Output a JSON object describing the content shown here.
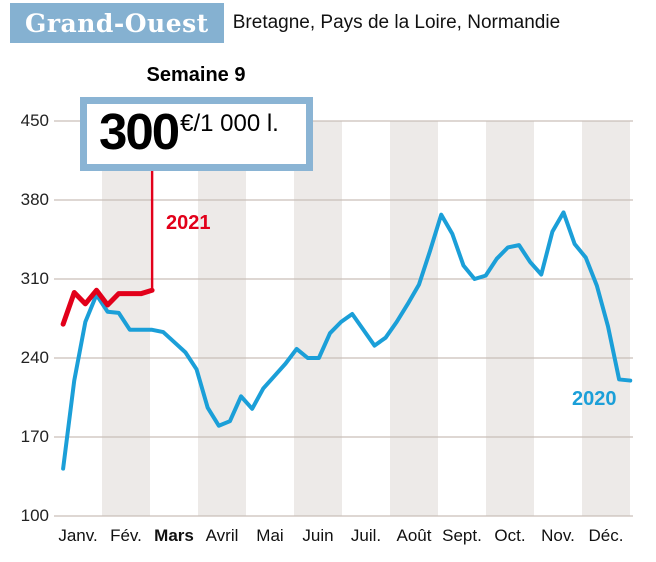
{
  "header": {
    "region": "Grand-Ouest",
    "subtitle": "Bretagne, Pays de la Loire, Normandie"
  },
  "callout": {
    "title": "Semaine 9",
    "value": "300",
    "unit": "€/1 000 l."
  },
  "colors": {
    "red_2021": "#e2001a",
    "blue_2020": "#1b9fd8",
    "header_bg": "#85b1d1",
    "callout_border": "#8ab4d4",
    "month_band": "#edeae8",
    "gridline": "#c9bfb9",
    "text": "#1d1d1b"
  },
  "chart_data": {
    "type": "line",
    "unit": "€/1 000 l.",
    "months": [
      "Janv.",
      "Fév.",
      "Mars",
      "Avril",
      "Mai",
      "Juin",
      "Juil.",
      "Août",
      "Sept.",
      "Oct.",
      "Nov.",
      "Déc."
    ],
    "bold_month": "Mars",
    "y_ticks": [
      450,
      380,
      310,
      240,
      170,
      100
    ],
    "ylim": [
      100,
      460
    ],
    "x_weeks": 52,
    "legend_position": "on-chart",
    "grid": "horizontal",
    "series": [
      {
        "name": "2020",
        "color": "#1b9fd8",
        "start_week": 1,
        "values": [
          142,
          220,
          272,
          296,
          281,
          280,
          265,
          265,
          265,
          263,
          254,
          245,
          230,
          196,
          180,
          184,
          206,
          195,
          213,
          224,
          235,
          248,
          240,
          240,
          262,
          272,
          279,
          265,
          251,
          258,
          272,
          288,
          305,
          335,
          367,
          350,
          322,
          310,
          313,
          328,
          338,
          340,
          325,
          314,
          352,
          369,
          341,
          329,
          304,
          268,
          221,
          220
        ]
      },
      {
        "name": "2021",
        "color": "#e2001a",
        "start_week": 1,
        "values": [
          270,
          298,
          288,
          300,
          287,
          297,
          297,
          297,
          300
        ]
      }
    ],
    "annotation": {
      "label": "Semaine 9",
      "series": "2021",
      "week": 9,
      "value": 300,
      "unit": "€/1 000 l."
    }
  }
}
